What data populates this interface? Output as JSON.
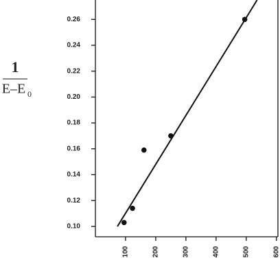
{
  "chart_data": {
    "type": "scatter",
    "y_label": {
      "numerator": "1",
      "denominator": "E–E",
      "subscript": "0"
    },
    "x": [
      95,
      123,
      161,
      250,
      495
    ],
    "values": [
      0.103,
      0.114,
      0.159,
      0.17,
      0.26
    ],
    "color": "#111111",
    "fit": {
      "x": [
        73,
        536
      ],
      "values": [
        0.1,
        0.275
      ]
    },
    "xlim": [
      0,
      605
    ],
    "ylim": [
      0.092,
      0.275
    ],
    "xticks": [
      100,
      200,
      300,
      400,
      500,
      600
    ],
    "yticks": [
      {
        "value": 0.1,
        "label": "0.10"
      },
      {
        "value": 0.12,
        "label": "0.12"
      },
      {
        "value": 0.14,
        "label": "0.14"
      },
      {
        "value": 0.16,
        "label": "0.16"
      },
      {
        "value": 0.18,
        "label": "0.18"
      },
      {
        "value": 0.2,
        "label": "0.20"
      },
      {
        "value": 0.22,
        "label": "0.22"
      },
      {
        "value": 0.24,
        "label": "0.24"
      },
      {
        "value": 0.26,
        "label": "0.26"
      }
    ]
  }
}
